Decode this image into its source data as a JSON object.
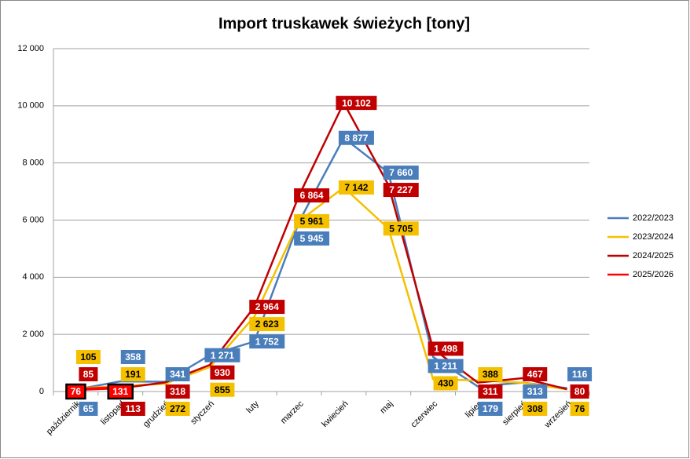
{
  "chart_data": {
    "type": "line",
    "title": "Import truskawek świeżych [tony]",
    "categories": [
      "październik",
      "listopad",
      "grudzień",
      "styczeń",
      "luty",
      "marzec",
      "kwiecień",
      "maj",
      "czerwiec",
      "lipiec",
      "sierpień",
      "wrzesień"
    ],
    "series": [
      {
        "name": "2022/2023",
        "color": "#4a7ebb",
        "values": [
          65,
          358,
          341,
          1271,
          1752,
          5945,
          8877,
          7660,
          1211,
          179,
          313,
          116
        ],
        "value_labels": [
          "65",
          "358",
          "341",
          "1 271",
          "1 752",
          "5 945",
          "8 877",
          "7 660",
          "1 211",
          "179",
          "313",
          "116"
        ]
      },
      {
        "name": "2023/2024",
        "color": "#f5c000",
        "values": [
          105,
          191,
          272,
          855,
          2623,
          5961,
          7142,
          5705,
          430,
          388,
          308,
          76
        ],
        "value_labels": [
          "105",
          "191",
          "272",
          "855",
          "2 623",
          "5 961",
          "7 142",
          "5 705",
          "430",
          "388",
          "308",
          "76"
        ]
      },
      {
        "name": "2024/2025",
        "color": "#c00000",
        "values": [
          85,
          113,
          318,
          930,
          2964,
          6864,
          10102,
          7227,
          1498,
          311,
          467,
          80
        ],
        "value_labels": [
          "85",
          "113",
          "318",
          "930",
          "2 964",
          "6 864",
          "10 102",
          "7 227",
          "1 498",
          "311",
          "467",
          "80"
        ]
      },
      {
        "name": "2025/2026",
        "color": "#ff0000",
        "values": [
          76,
          131,
          null,
          null,
          null,
          null,
          null,
          null,
          null,
          null,
          null,
          null
        ],
        "value_labels": [
          "76",
          "131",
          null,
          null,
          null,
          null,
          null,
          null,
          null,
          null,
          null,
          null
        ]
      }
    ],
    "ylim": [
      0,
      12000
    ],
    "yticks": [
      0,
      {
        "value": 2000,
        "label": "2 000"
      },
      {
        "value": 4000,
        "label": "4 000"
      },
      {
        "value": 6000,
        "label": "6 000"
      },
      {
        "value": 8000,
        "label": "8 000"
      },
      {
        "value": 10000,
        "label": "10 000"
      },
      {
        "value": 12000,
        "label": "12 000"
      }
    ],
    "grid": true,
    "legend": "right"
  }
}
